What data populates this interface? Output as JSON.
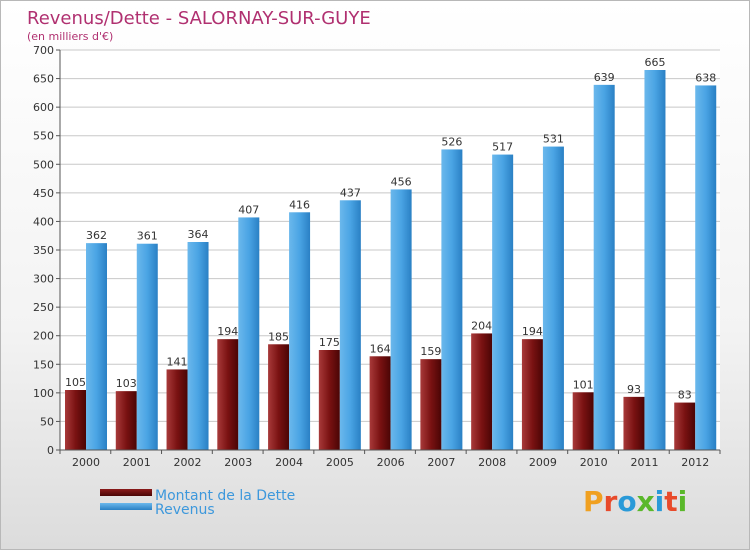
{
  "chart_data": {
    "type": "bar",
    "title": "Revenus/Dette - SALORNAY-SUR-GUYE",
    "subtitle": "(en milliers d'€)",
    "categories": [
      "2000",
      "2001",
      "2002",
      "2003",
      "2004",
      "2005",
      "2006",
      "2007",
      "2008",
      "2009",
      "2010",
      "2011",
      "2012"
    ],
    "series": [
      {
        "name": "Montant de la Dette",
        "color": "#8b1a1a",
        "values": [
          105,
          103,
          141,
          194,
          185,
          175,
          164,
          159,
          204,
          194,
          101,
          93,
          83
        ]
      },
      {
        "name": "Revenus",
        "color": "#3d98dc",
        "values": [
          362,
          361,
          364,
          407,
          416,
          437,
          456,
          526,
          517,
          531,
          639,
          665,
          638
        ]
      }
    ],
    "ylim": [
      0,
      700
    ],
    "yticks": [
      0,
      50,
      100,
      150,
      200,
      250,
      300,
      350,
      400,
      450,
      500,
      550,
      600,
      650,
      700
    ],
    "grid": true,
    "legend_position": "bottom-left"
  },
  "brand": {
    "text": "Proxiti",
    "letters": [
      "P",
      "r",
      "o",
      "x",
      "i",
      "t",
      "i"
    ],
    "colors": [
      "#f0a020",
      "#e84a2a",
      "#2a9ad8",
      "#5ab82a",
      "#2a9ad8",
      "#e84a2a",
      "#5ab82a"
    ]
  }
}
